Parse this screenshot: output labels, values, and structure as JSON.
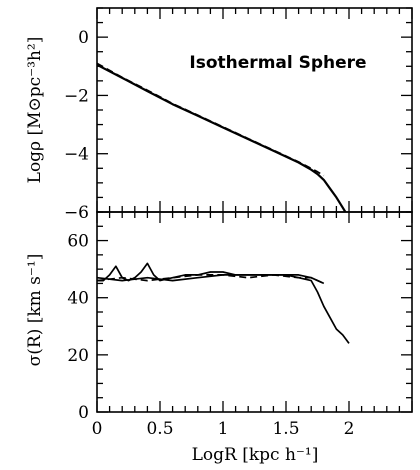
{
  "chart_data": [
    {
      "type": "line",
      "title": "Isothermal Sphere",
      "xlabel": "",
      "ylabel": "Logρ [M⊙pc⁻³h²]",
      "xlim": [
        0,
        2.5
      ],
      "ylim": [
        -6,
        1
      ],
      "x_ticks": [
        "0",
        "0.5",
        "1",
        "1.5",
        "2"
      ],
      "y_ticks": [
        "0",
        "−2",
        "−4",
        "−6"
      ],
      "y_tick_values": [
        0,
        -2,
        -4,
        -6
      ],
      "series": [
        {
          "style": "solid",
          "x": [
            0,
            0.2,
            0.4,
            0.6,
            0.8,
            1.0,
            1.2,
            1.4,
            1.6,
            1.7,
            1.75,
            1.8,
            1.85,
            1.9,
            1.95,
            2.0
          ],
          "y": [
            -0.95,
            -1.4,
            -1.85,
            -2.3,
            -2.7,
            -3.1,
            -3.5,
            -3.9,
            -4.3,
            -4.55,
            -4.7,
            -4.9,
            -5.2,
            -5.5,
            -5.85,
            -6.2
          ]
        },
        {
          "style": "dashed",
          "x": [
            0,
            0.2,
            0.4,
            0.6,
            0.8,
            1.0,
            1.2,
            1.4,
            1.6,
            1.75,
            1.8
          ],
          "y": [
            -0.9,
            -1.38,
            -1.82,
            -2.28,
            -2.68,
            -3.08,
            -3.48,
            -3.88,
            -4.28,
            -4.62,
            -4.75
          ]
        }
      ]
    },
    {
      "type": "line",
      "xlabel": "LogR [kpc h⁻¹]",
      "ylabel": "σ(R) [km s⁻¹]",
      "xlim": [
        0,
        2.5
      ],
      "ylim": [
        0,
        70
      ],
      "x_ticks": [
        "0",
        "0.5",
        "1",
        "1.5",
        "2"
      ],
      "x_tick_values": [
        0,
        0.5,
        1,
        1.5,
        2
      ],
      "y_ticks": [
        "0",
        "20",
        "40",
        "60"
      ],
      "y_tick_values": [
        0,
        20,
        40,
        60
      ],
      "series": [
        {
          "style": "solid",
          "x": [
            0,
            0.05,
            0.1,
            0.15,
            0.2,
            0.25,
            0.3,
            0.35,
            0.4,
            0.45,
            0.5,
            0.6,
            0.7,
            0.8,
            0.9,
            1.0,
            1.1,
            1.2,
            1.3,
            1.4,
            1.5,
            1.6,
            1.7,
            1.75,
            1.8,
            1.85,
            1.9,
            1.95,
            2.0
          ],
          "y": [
            46,
            46,
            48,
            51,
            47,
            46,
            47,
            49,
            52,
            48,
            46,
            47,
            48,
            48,
            49,
            49,
            48,
            48,
            48,
            48,
            48,
            47,
            46,
            42,
            37,
            33,
            29,
            27,
            24
          ]
        },
        {
          "style": "solid",
          "x": [
            0,
            0.2,
            0.4,
            0.6,
            0.8,
            1.0,
            1.2,
            1.4,
            1.6,
            1.7,
            1.8
          ],
          "y": [
            47,
            46,
            47,
            46,
            47,
            48,
            48,
            48,
            48,
            47,
            45
          ]
        },
        {
          "style": "dashed",
          "x": [
            0,
            0.2,
            0.4,
            0.6,
            0.8,
            1.0,
            1.2,
            1.4,
            1.6,
            1.7,
            1.8
          ],
          "y": [
            46,
            47,
            46,
            47,
            48,
            48,
            47,
            48,
            47,
            47,
            45
          ]
        }
      ]
    }
  ]
}
